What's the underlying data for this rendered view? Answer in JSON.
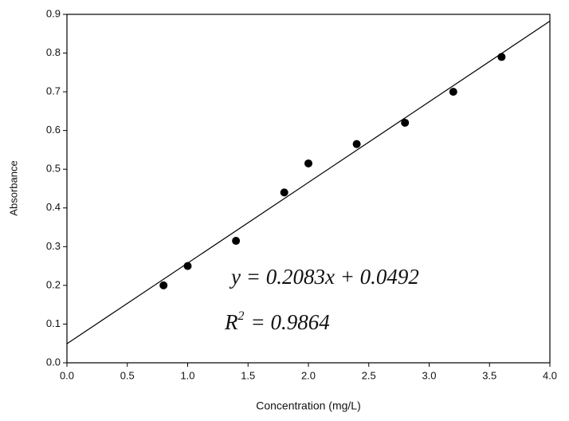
{
  "chart_data": {
    "type": "scatter",
    "x_label": "Concentration (mg/L)",
    "y_label": "Absorbance",
    "x": [
      0.8,
      1.0,
      1.4,
      1.8,
      2.0,
      2.4,
      2.8,
      3.2,
      3.6
    ],
    "series": [
      {
        "color": "#000000",
        "values": [
          0.2,
          0.25,
          0.315,
          0.44,
          0.515,
          0.565,
          0.62,
          0.7,
          0.79
        ]
      }
    ],
    "trendline": {
      "slope": 0.2083,
      "intercept": 0.0492,
      "color": "#000000",
      "equation": "y = 0.2083x + 0.0492",
      "r2_symbol": "R",
      "r2_exponent": "2",
      "r2_text": "= 0.9864"
    },
    "xlim": [
      0,
      4
    ],
    "ylim": [
      0,
      0.9
    ],
    "xticks": [
      {
        "value": 0,
        "label": "0.0"
      },
      0.5,
      {
        "value": 1,
        "label": "1.0"
      },
      1.5,
      {
        "value": 2,
        "label": "2.0"
      },
      2.5,
      {
        "value": 3,
        "label": "3.0"
      },
      3.5,
      {
        "value": 4,
        "label": "4.0"
      }
    ],
    "yticks": [
      {
        "value": 0,
        "label": "0.0"
      },
      0.1,
      0.2,
      0.3,
      0.4,
      0.5,
      0.6,
      0.7,
      0.8,
      0.9
    ],
    "grid": false
  }
}
